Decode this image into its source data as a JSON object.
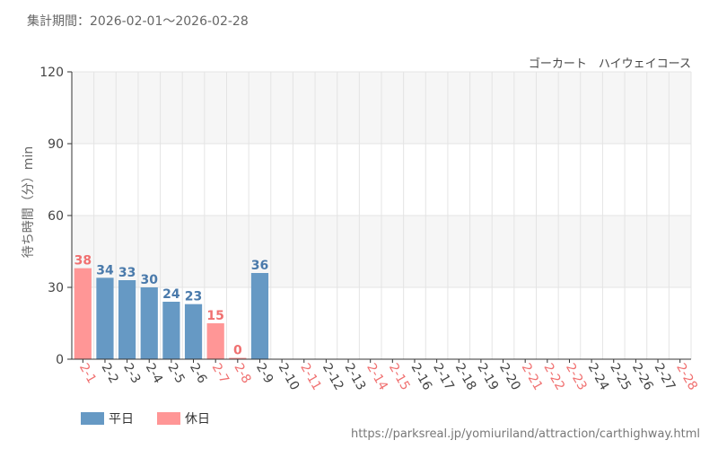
{
  "header": {
    "period_label": "集計期間：2026-02-01～2026-02-28",
    "subtitle": "ゴーカート　ハイウェイコース"
  },
  "footer": {
    "source_url": "https://parksreal.jp/yomiuriland/attraction/carthighway.html"
  },
  "colors": {
    "weekday": "#6699c4",
    "holiday": "#ff9696",
    "weekday_label": "#4a7aab",
    "holiday_label": "#f07070",
    "weekday_tick": "#444444",
    "holiday_tick": "#f07070",
    "band_light": "#f6f6f6",
    "gridline": "#e4e4e4",
    "axis": "#333333"
  },
  "chart_data": {
    "type": "bar",
    "ylabel": "待ち時間（分）min",
    "xlabel": "",
    "ylim": [
      0,
      120
    ],
    "yticks": [
      0,
      30,
      60,
      90,
      120
    ],
    "grid": true,
    "legend_placement": "bottom-left",
    "legend": [
      {
        "name": "平日",
        "key": "weekday"
      },
      {
        "name": "休日",
        "key": "holiday"
      }
    ],
    "categories": [
      "2-1",
      "2-2",
      "2-3",
      "2-4",
      "2-5",
      "2-6",
      "2-7",
      "2-8",
      "2-9",
      "2-10",
      "2-11",
      "2-12",
      "2-13",
      "2-14",
      "2-15",
      "2-16",
      "2-17",
      "2-18",
      "2-19",
      "2-20",
      "2-21",
      "2-22",
      "2-23",
      "2-24",
      "2-25",
      "2-26",
      "2-27",
      "2-28"
    ],
    "day_type": [
      "holiday",
      "weekday",
      "weekday",
      "weekday",
      "weekday",
      "weekday",
      "holiday",
      "holiday",
      "weekday",
      "weekday",
      "holiday",
      "weekday",
      "weekday",
      "holiday",
      "holiday",
      "weekday",
      "weekday",
      "weekday",
      "weekday",
      "weekday",
      "holiday",
      "holiday",
      "holiday",
      "weekday",
      "weekday",
      "weekday",
      "weekday",
      "holiday"
    ],
    "values": [
      38,
      34,
      33,
      30,
      24,
      23,
      15,
      0,
      36,
      null,
      null,
      null,
      null,
      null,
      null,
      null,
      null,
      null,
      null,
      null,
      null,
      null,
      null,
      null,
      null,
      null,
      null,
      null
    ]
  }
}
